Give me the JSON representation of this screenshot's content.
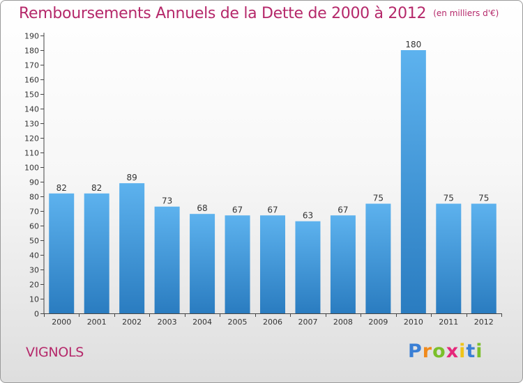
{
  "title": "Remboursements Annuels de la Dette de 2000 à 2012",
  "unit": "(en milliers d'€)",
  "city": "VIGNOLS",
  "logo": {
    "letters": [
      "P",
      "r",
      "o",
      "x",
      "i",
      "t",
      "i"
    ],
    "colors": [
      "#3a7fd5",
      "#f08a1c",
      "#7bbf2a",
      "#e5287a",
      "#f0c419",
      "#3a7fd5",
      "#7bbf2a"
    ]
  },
  "colors": {
    "bar_top": "#5db2ee",
    "bar_bottom": "#2a7cc0",
    "title": "#b5286a"
  },
  "chart_data": {
    "type": "bar",
    "title": "Remboursements Annuels de la Dette de 2000 à 2012",
    "categories": [
      "2000",
      "2001",
      "2002",
      "2003",
      "2004",
      "2005",
      "2006",
      "2007",
      "2008",
      "2009",
      "2010",
      "2011",
      "2012"
    ],
    "values": [
      82,
      82,
      89,
      73,
      68,
      67,
      67,
      63,
      67,
      75,
      180,
      75,
      75
    ],
    "ylim": [
      0,
      190
    ],
    "ytick_step": 10,
    "grid": false,
    "data_labels": true
  }
}
